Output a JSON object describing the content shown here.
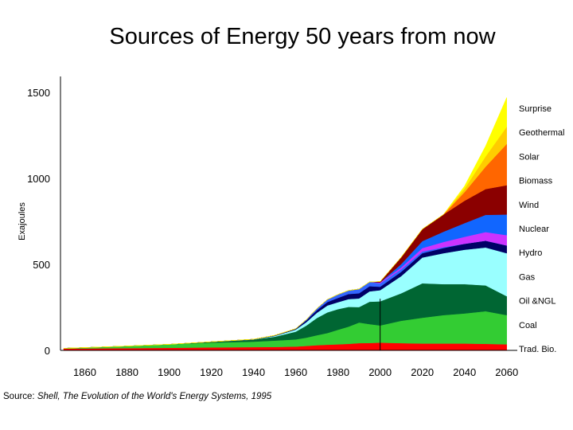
{
  "chart_data": {
    "type": "area",
    "title": "Sources of Energy 50 years from now",
    "xlabel": "",
    "ylabel": "Exajoules",
    "xlim": [
      1850,
      2065
    ],
    "ylim": [
      0,
      1500
    ],
    "grid": false,
    "stacked": true,
    "x_ticks": [
      "1860",
      "1880",
      "1900",
      "1920",
      "1940",
      "1960",
      "1980",
      "2000",
      "2020",
      "2040",
      "2060"
    ],
    "y_ticks": [
      "0",
      "500",
      "1000",
      "1500"
    ],
    "annotations": {
      "reference_line_x": 2000
    },
    "x": [
      1850,
      1860,
      1880,
      1900,
      1920,
      1940,
      1950,
      1960,
      1965,
      1970,
      1975,
      1980,
      1985,
      1990,
      1995,
      2000,
      2010,
      2020,
      2030,
      2040,
      2050,
      2060
    ],
    "series": [
      {
        "name": "Trad. Bio.",
        "color": "#ff0000",
        "values": [
          10,
          11,
          13,
          15,
          17,
          19,
          20,
          22,
          26,
          30,
          33,
          35,
          38,
          42,
          43,
          45,
          42,
          40,
          40,
          40,
          38,
          35
        ]
      },
      {
        "name": "Coal",
        "color": "#33cc33",
        "values": [
          2,
          5,
          12,
          20,
          28,
          32,
          37,
          42,
          48,
          58,
          68,
          85,
          100,
          120,
          110,
          100,
          130,
          150,
          165,
          175,
          190,
          170
        ]
      },
      {
        "name": "Oil &NGL",
        "color": "#006633",
        "values": [
          0,
          0,
          0,
          0,
          5,
          12,
          22,
          45,
          70,
          100,
          120,
          120,
          115,
          90,
          130,
          140,
          160,
          200,
          180,
          170,
          150,
          110
        ]
      },
      {
        "name": "Gas",
        "color": "#99ffff",
        "values": [
          0,
          0,
          0,
          0,
          0,
          0,
          5,
          12,
          20,
          30,
          40,
          40,
          45,
          50,
          60,
          65,
          100,
          150,
          180,
          200,
          220,
          250
        ]
      },
      {
        "name": "Hydro",
        "color": "#000066",
        "values": [
          0,
          0,
          0,
          0,
          0,
          2,
          3,
          5,
          10,
          15,
          20,
          25,
          30,
          30,
          30,
          20,
          25,
          25,
          30,
          35,
          40,
          45
        ]
      },
      {
        "name": "Nuclear",
        "color": "#3366ff",
        "values": [
          0,
          0,
          0,
          0,
          0,
          0,
          0,
          0,
          5,
          10,
          15,
          20,
          20,
          25,
          25,
          20,
          15,
          10,
          5,
          0,
          0,
          0
        ]
      },
      {
        "name": "Wind",
        "color": "#cc33ff",
        "values": [
          0,
          0,
          0,
          0,
          0,
          0,
          0,
          0,
          0,
          0,
          0,
          0,
          0,
          0,
          0,
          5,
          10,
          20,
          30,
          40,
          50,
          60
        ]
      },
      {
        "name": "Biomass",
        "color": "#1166ff",
        "values": [
          0,
          0,
          0,
          0,
          0,
          0,
          0,
          0,
          0,
          0,
          0,
          0,
          0,
          0,
          0,
          0,
          20,
          40,
          60,
          80,
          100,
          120
        ]
      },
      {
        "name": "Solar",
        "color": "#8b0000",
        "values": [
          0,
          0,
          0,
          0,
          0,
          0,
          0,
          0,
          0,
          0,
          0,
          0,
          0,
          0,
          0,
          5,
          40,
          70,
          100,
          130,
          150,
          170
        ]
      },
      {
        "name": "Geothermal",
        "color": "#ff6600",
        "values": [
          0,
          0,
          0,
          0,
          0,
          0,
          0,
          0,
          0,
          0,
          0,
          0,
          0,
          0,
          0,
          0,
          0,
          0,
          0,
          50,
          130,
          240
        ]
      },
      {
        "name": "Surprise",
        "color": "#ffcc00",
        "values": [
          0,
          0,
          0,
          0,
          0,
          0,
          0,
          0,
          0,
          0,
          0,
          0,
          0,
          0,
          0,
          0,
          0,
          0,
          0,
          20,
          60,
          100
        ]
      },
      {
        "name": "",
        "color": "#ffff00",
        "values": [
          0,
          0,
          0,
          0,
          0,
          0,
          0,
          0,
          0,
          0,
          0,
          0,
          0,
          0,
          0,
          0,
          0,
          0,
          0,
          15,
          60,
          170
        ]
      }
    ]
  },
  "source_note": {
    "prefix": "Source:",
    "work": "Shell, The Evolution of the World's Energy Systems, 1995"
  }
}
